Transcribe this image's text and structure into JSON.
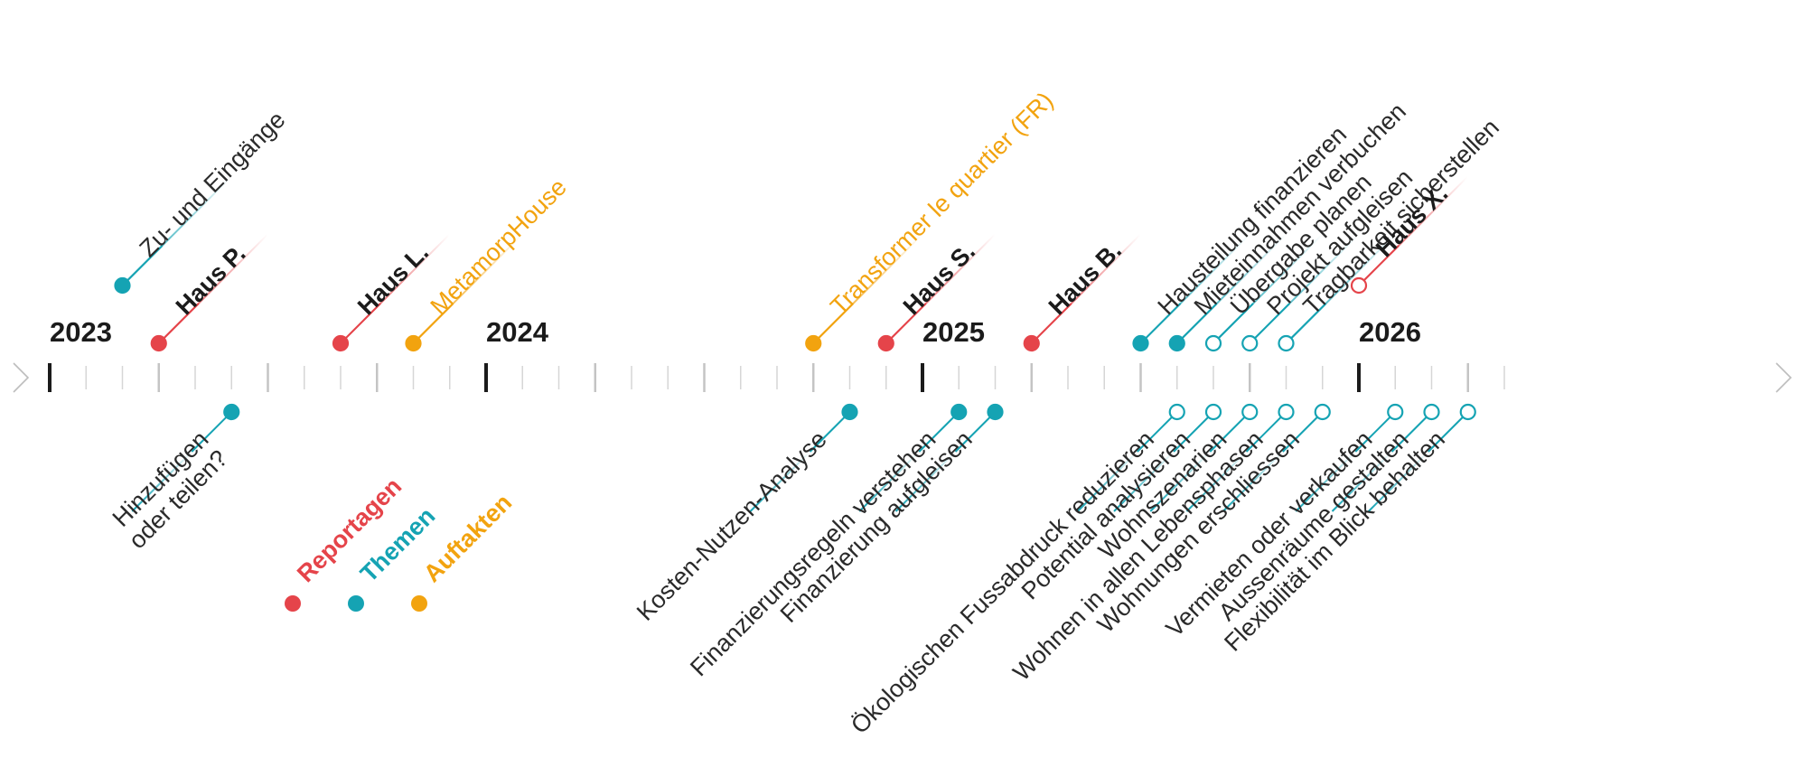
{
  "colors": {
    "reportage": "#e5444a",
    "thema": "#15a3b3",
    "auftakt": "#f2a30f",
    "axis": "#c4c4c4",
    "axis_major": "#1b1b1b",
    "text": "#2a2a2a"
  },
  "years": [
    {
      "label": "2023",
      "month_index": 0
    },
    {
      "label": "2024",
      "month_index": 12
    },
    {
      "label": "2025",
      "month_index": 24
    },
    {
      "label": "2026",
      "month_index": 36
    }
  ],
  "legend": [
    {
      "label": "Reportagen",
      "category": "reportage"
    },
    {
      "label": "Themen",
      "category": "thema"
    },
    {
      "label": "Auftakten",
      "category": "auftakt"
    }
  ],
  "events_above": [
    {
      "label": "Zu- und Eingänge",
      "category": "thema",
      "month": 2,
      "level": 2,
      "filled": true
    },
    {
      "label": "Haus P.",
      "category": "reportage",
      "month": 3,
      "level": 1,
      "filled": true
    },
    {
      "label": "Haus L.",
      "category": "reportage",
      "month": 8,
      "level": 1,
      "filled": true
    },
    {
      "label": "MetamorpHouse",
      "category": "auftakt",
      "month": 10,
      "level": 1,
      "filled": true
    },
    {
      "label": "Transformer le quartier (FR)",
      "category": "auftakt",
      "month": 21,
      "level": 1,
      "filled": true
    },
    {
      "label": "Haus S.",
      "category": "reportage",
      "month": 23,
      "level": 1,
      "filled": true
    },
    {
      "label": "Haus B.",
      "category": "reportage",
      "month": 27,
      "level": 1,
      "filled": true
    },
    {
      "label": "Hausteilung finanzieren",
      "category": "thema",
      "month": 30,
      "level": 1,
      "filled": true
    },
    {
      "label": "Mieteinnahmen verbuchen",
      "category": "thema",
      "month": 31,
      "level": 1,
      "filled": true
    },
    {
      "label": "Übergabe planen",
      "category": "thema",
      "month": 32,
      "level": 1,
      "filled": false
    },
    {
      "label": "Projekt aufgleisen",
      "category": "thema",
      "month": 33,
      "level": 1,
      "filled": false
    },
    {
      "label": "Tragbarkeit sicherstellen",
      "category": "thema",
      "month": 34,
      "level": 1,
      "filled": false
    },
    {
      "label": "Haus X.",
      "category": "reportage",
      "month": 36,
      "level": 2,
      "filled": false
    }
  ],
  "events_below": [
    {
      "lines": [
        "Hinzufügen",
        "oder teilen?"
      ],
      "category": "thema",
      "month": 5,
      "filled": true
    },
    {
      "lines": [
        "Kosten-Nutzen-Analyse"
      ],
      "category": "thema",
      "month": 22,
      "filled": true
    },
    {
      "lines": [
        "Finanzierungsregeln verstehen"
      ],
      "category": "thema",
      "month": 25,
      "filled": true
    },
    {
      "lines": [
        "Finanzierung aufgleisen"
      ],
      "category": "thema",
      "month": 26,
      "filled": true
    },
    {
      "lines": [
        "Ökologischen Fussabdruck reduzieren"
      ],
      "category": "thema",
      "month": 31,
      "filled": false
    },
    {
      "lines": [
        "Potential analysieren"
      ],
      "category": "thema",
      "month": 32,
      "filled": false
    },
    {
      "lines": [
        "Wohnszenarien"
      ],
      "category": "thema",
      "month": 33,
      "filled": false
    },
    {
      "lines": [
        "Wohnen in allen Lebensphasen"
      ],
      "category": "thema",
      "month": 34,
      "filled": false
    },
    {
      "lines": [
        "Wohnungen erschliessen"
      ],
      "category": "thema",
      "month": 35,
      "filled": false
    },
    {
      "lines": [
        "Vermieten oder verkaufen"
      ],
      "category": "thema",
      "month": 37,
      "filled": false
    },
    {
      "lines": [
        "Aussenräume gestalten"
      ],
      "category": "thema",
      "month": 38,
      "filled": false
    },
    {
      "lines": [
        "Flexibilität im Blick behalten"
      ],
      "category": "thema",
      "month": 39,
      "filled": false
    }
  ]
}
